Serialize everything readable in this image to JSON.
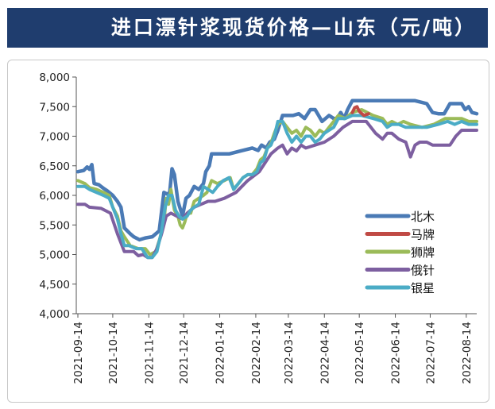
{
  "chart_data": {
    "type": "line",
    "title": "进口漂针浆现货价格—山东（元/吨）",
    "xlabel": "",
    "ylabel": "",
    "ylim": [
      4000,
      8000
    ],
    "yticks": [
      "4,000",
      "4,500",
      "5,000",
      "5,500",
      "6,000",
      "6,500",
      "7,000",
      "7,500",
      "8,000"
    ],
    "xlim": [
      0,
      343
    ],
    "xticks": [
      {
        "label": "2021-09-14",
        "day": 0
      },
      {
        "label": "2021-10-14",
        "day": 30
      },
      {
        "label": "2021-11-14",
        "day": 61
      },
      {
        "label": "2021-12-14",
        "day": 91
      },
      {
        "label": "2022-01-14",
        "day": 122
      },
      {
        "label": "2022-02-14",
        "day": 153
      },
      {
        "label": "2022-03-14",
        "day": 181
      },
      {
        "label": "2022-04-14",
        "day": 212
      },
      {
        "label": "2022-05-14",
        "day": 242
      },
      {
        "label": "2022-06-14",
        "day": 273
      },
      {
        "label": "2022-07-14",
        "day": 303
      },
      {
        "label": "2022-08-14",
        "day": 334
      }
    ],
    "grid": false,
    "legend_position": "right-lower",
    "series": [
      {
        "name": "北木",
        "color": "#4a7ab5",
        "points": [
          [
            0,
            6400
          ],
          [
            5,
            6420
          ],
          [
            8,
            6480
          ],
          [
            10,
            6440
          ],
          [
            12,
            6520
          ],
          [
            14,
            6200
          ],
          [
            18,
            6180
          ],
          [
            22,
            6120
          ],
          [
            25,
            6080
          ],
          [
            30,
            6000
          ],
          [
            34,
            5900
          ],
          [
            37,
            5800
          ],
          [
            40,
            5450
          ],
          [
            45,
            5350
          ],
          [
            48,
            5300
          ],
          [
            53,
            5250
          ],
          [
            58,
            5280
          ],
          [
            64,
            5300
          ],
          [
            70,
            5400
          ],
          [
            74,
            6050
          ],
          [
            77,
            6020
          ],
          [
            79,
            6050
          ],
          [
            81,
            6450
          ],
          [
            83,
            6350
          ],
          [
            86,
            5900
          ],
          [
            90,
            5650
          ],
          [
            93,
            5950
          ],
          [
            96,
            6000
          ],
          [
            100,
            6150
          ],
          [
            104,
            6100
          ],
          [
            108,
            6200
          ],
          [
            110,
            6400
          ],
          [
            113,
            6500
          ],
          [
            115,
            6700
          ],
          [
            122,
            6700
          ],
          [
            130,
            6700
          ],
          [
            140,
            6750
          ],
          [
            150,
            6800
          ],
          [
            155,
            6760
          ],
          [
            158,
            6850
          ],
          [
            162,
            6800
          ],
          [
            165,
            6900
          ],
          [
            169,
            6950
          ],
          [
            172,
            7100
          ],
          [
            176,
            7350
          ],
          [
            185,
            7350
          ],
          [
            190,
            7380
          ],
          [
            195,
            7300
          ],
          [
            200,
            7450
          ],
          [
            204,
            7450
          ],
          [
            207,
            7350
          ],
          [
            210,
            7250
          ],
          [
            213,
            7300
          ],
          [
            216,
            7350
          ],
          [
            220,
            7300
          ],
          [
            223,
            7300
          ],
          [
            226,
            7400
          ],
          [
            229,
            7300
          ],
          [
            232,
            7450
          ],
          [
            236,
            7600
          ],
          [
            250,
            7600
          ],
          [
            270,
            7600
          ],
          [
            290,
            7600
          ],
          [
            300,
            7550
          ],
          [
            305,
            7400
          ],
          [
            310,
            7380
          ],
          [
            315,
            7380
          ],
          [
            320,
            7550
          ],
          [
            330,
            7550
          ],
          [
            333,
            7450
          ],
          [
            336,
            7500
          ],
          [
            339,
            7400
          ],
          [
            343,
            7380
          ]
        ]
      },
      {
        "name": "马牌",
        "color": "#c04a45",
        "points": [
          [
            236,
            7400
          ],
          [
            238,
            7480
          ],
          [
            240,
            7500
          ],
          [
            242,
            7420
          ],
          [
            246,
            7350
          ],
          [
            250,
            7380
          ]
        ]
      },
      {
        "name": "狮牌",
        "color": "#9bbb59",
        "points": [
          [
            0,
            6250
          ],
          [
            6,
            6200
          ],
          [
            10,
            6130
          ],
          [
            16,
            6100
          ],
          [
            22,
            6050
          ],
          [
            27,
            6000
          ],
          [
            30,
            5800
          ],
          [
            34,
            5650
          ],
          [
            37,
            5400
          ],
          [
            40,
            5300
          ],
          [
            45,
            5150
          ],
          [
            52,
            5100
          ],
          [
            58,
            5100
          ],
          [
            62,
            5000
          ],
          [
            67,
            5050
          ],
          [
            71,
            5300
          ],
          [
            74,
            5550
          ],
          [
            76,
            5950
          ],
          [
            78,
            5850
          ],
          [
            80,
            6100
          ],
          [
            83,
            5750
          ],
          [
            86,
            5650
          ],
          [
            88,
            5500
          ],
          [
            90,
            5450
          ],
          [
            92,
            5550
          ],
          [
            94,
            5700
          ],
          [
            97,
            5700
          ],
          [
            100,
            5900
          ],
          [
            104,
            5950
          ],
          [
            108,
            6000
          ],
          [
            111,
            6050
          ],
          [
            115,
            6250
          ],
          [
            120,
            6200
          ],
          [
            126,
            6250
          ],
          [
            131,
            6300
          ],
          [
            134,
            6100
          ],
          [
            138,
            6200
          ],
          [
            142,
            6300
          ],
          [
            146,
            6350
          ],
          [
            150,
            6350
          ],
          [
            154,
            6450
          ],
          [
            157,
            6600
          ],
          [
            160,
            6650
          ],
          [
            163,
            6800
          ],
          [
            166,
            6880
          ],
          [
            169,
            7050
          ],
          [
            172,
            7200
          ],
          [
            176,
            7250
          ],
          [
            180,
            7150
          ],
          [
            184,
            7050
          ],
          [
            188,
            7100
          ],
          [
            192,
            7000
          ],
          [
            196,
            7150
          ],
          [
            200,
            7100
          ],
          [
            204,
            7000
          ],
          [
            208,
            7100
          ],
          [
            212,
            7050
          ],
          [
            216,
            7150
          ],
          [
            220,
            7250
          ],
          [
            224,
            7350
          ],
          [
            230,
            7300
          ],
          [
            236,
            7400
          ],
          [
            244,
            7450
          ],
          [
            254,
            7350
          ],
          [
            262,
            7300
          ],
          [
            266,
            7200
          ],
          [
            270,
            7250
          ],
          [
            275,
            7200
          ],
          [
            280,
            7250
          ],
          [
            286,
            7200
          ],
          [
            296,
            7150
          ],
          [
            306,
            7200
          ],
          [
            316,
            7300
          ],
          [
            324,
            7300
          ],
          [
            330,
            7300
          ],
          [
            336,
            7250
          ],
          [
            343,
            7250
          ]
        ]
      },
      {
        "name": "俄针",
        "color": "#7d5fa0",
        "points": [
          [
            0,
            5850
          ],
          [
            6,
            5850
          ],
          [
            10,
            5800
          ],
          [
            20,
            5780
          ],
          [
            28,
            5700
          ],
          [
            34,
            5350
          ],
          [
            40,
            5050
          ],
          [
            48,
            5050
          ],
          [
            52,
            4980
          ],
          [
            56,
            5000
          ],
          [
            60,
            4950
          ],
          [
            64,
            4950
          ],
          [
            68,
            5100
          ],
          [
            72,
            5350
          ],
          [
            76,
            5650
          ],
          [
            80,
            5700
          ],
          [
            85,
            5650
          ],
          [
            90,
            5600
          ],
          [
            94,
            5700
          ],
          [
            100,
            5800
          ],
          [
            106,
            5850
          ],
          [
            112,
            5900
          ],
          [
            118,
            5900
          ],
          [
            126,
            5950
          ],
          [
            136,
            6050
          ],
          [
            146,
            6250
          ],
          [
            156,
            6400
          ],
          [
            166,
            6700
          ],
          [
            172,
            6800
          ],
          [
            176,
            6850
          ],
          [
            180,
            6700
          ],
          [
            184,
            6800
          ],
          [
            188,
            6750
          ],
          [
            192,
            6850
          ],
          [
            196,
            6800
          ],
          [
            204,
            6850
          ],
          [
            212,
            6900
          ],
          [
            220,
            7000
          ],
          [
            228,
            7150
          ],
          [
            236,
            7250
          ],
          [
            248,
            7250
          ],
          [
            256,
            7050
          ],
          [
            262,
            6950
          ],
          [
            266,
            7050
          ],
          [
            270,
            7050
          ],
          [
            276,
            6950
          ],
          [
            282,
            6900
          ],
          [
            286,
            6650
          ],
          [
            290,
            6850
          ],
          [
            294,
            6900
          ],
          [
            300,
            6900
          ],
          [
            305,
            6850
          ],
          [
            320,
            6850
          ],
          [
            325,
            7000
          ],
          [
            330,
            7100
          ],
          [
            336,
            7100
          ],
          [
            343,
            7100
          ]
        ]
      },
      {
        "name": "银星",
        "color": "#4bacc6",
        "points": [
          [
            0,
            6150
          ],
          [
            6,
            6150
          ],
          [
            10,
            6100
          ],
          [
            16,
            6050
          ],
          [
            22,
            6000
          ],
          [
            27,
            5950
          ],
          [
            30,
            5800
          ],
          [
            34,
            5600
          ],
          [
            37,
            5350
          ],
          [
            40,
            5150
          ],
          [
            44,
            5150
          ],
          [
            50,
            5100
          ],
          [
            55,
            5100
          ],
          [
            60,
            4950
          ],
          [
            64,
            4950
          ],
          [
            68,
            5050
          ],
          [
            72,
            5400
          ],
          [
            75,
            5800
          ],
          [
            78,
            6000
          ],
          [
            81,
            6000
          ],
          [
            84,
            5750
          ],
          [
            87,
            5650
          ],
          [
            90,
            5600
          ],
          [
            94,
            5650
          ],
          [
            97,
            5750
          ],
          [
            100,
            5800
          ],
          [
            104,
            5850
          ],
          [
            108,
            6150
          ],
          [
            112,
            6100
          ],
          [
            116,
            6050
          ],
          [
            120,
            6150
          ],
          [
            125,
            6250
          ],
          [
            130,
            6300
          ],
          [
            134,
            6100
          ],
          [
            138,
            6200
          ],
          [
            142,
            6300
          ],
          [
            146,
            6350
          ],
          [
            150,
            6350
          ],
          [
            154,
            6400
          ],
          [
            157,
            6550
          ],
          [
            160,
            6600
          ],
          [
            163,
            6800
          ],
          [
            166,
            6850
          ],
          [
            169,
            7000
          ],
          [
            172,
            7250
          ],
          [
            176,
            7250
          ],
          [
            180,
            7050
          ],
          [
            184,
            6900
          ],
          [
            188,
            7000
          ],
          [
            192,
            6900
          ],
          [
            196,
            7000
          ],
          [
            200,
            7000
          ],
          [
            204,
            6900
          ],
          [
            208,
            6950
          ],
          [
            212,
            7050
          ],
          [
            216,
            7100
          ],
          [
            220,
            7150
          ],
          [
            224,
            7300
          ],
          [
            230,
            7300
          ],
          [
            236,
            7350
          ],
          [
            244,
            7350
          ],
          [
            254,
            7300
          ],
          [
            262,
            7250
          ],
          [
            266,
            7150
          ],
          [
            270,
            7200
          ],
          [
            276,
            7200
          ],
          [
            282,
            7150
          ],
          [
            290,
            7150
          ],
          [
            300,
            7150
          ],
          [
            310,
            7200
          ],
          [
            318,
            7250
          ],
          [
            324,
            7200
          ],
          [
            330,
            7250
          ],
          [
            336,
            7200
          ],
          [
            343,
            7200
          ]
        ]
      }
    ]
  }
}
